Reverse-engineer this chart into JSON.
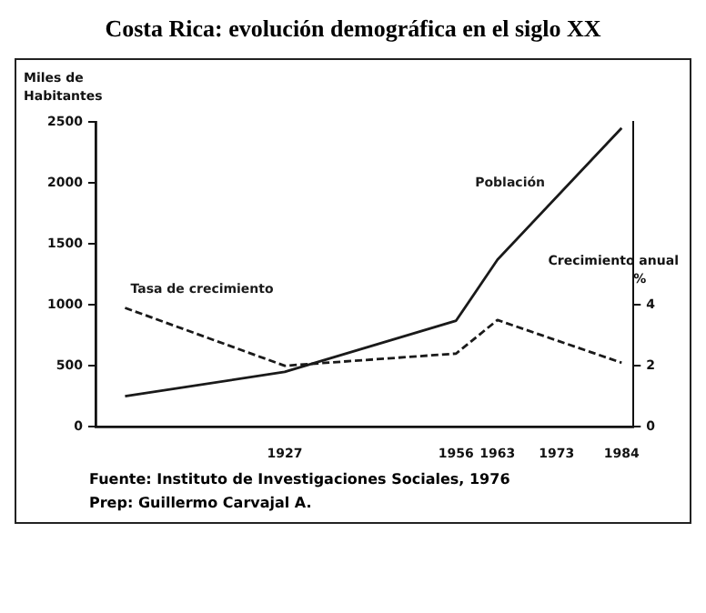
{
  "chart_data": {
    "type": "line",
    "title": "Costa Rica: evolución demográfica en el siglo XX",
    "ylabel": "Miles de Habitantes",
    "y2label": "Crecimiento anual %",
    "x": [
      1900,
      1927,
      1956,
      1963,
      1984
    ],
    "series": [
      {
        "name": "Población",
        "color": "#1a1a1a",
        "values": [
          250,
          450,
          870,
          1370,
          2450
        ],
        "line_style": "solid"
      },
      {
        "name": "Tasa de crecimiento",
        "color": "#1a1a1a",
        "values": [
          3.9,
          2.0,
          2.4,
          3.5,
          2.1
        ],
        "axis": "y2",
        "line_style": "dashed"
      }
    ],
    "xlim": [
      1895,
      1986
    ],
    "xticks": [
      1927,
      1956,
      1963,
      1973,
      1984
    ],
    "ylim": [
      0,
      2500
    ],
    "yticks": [
      0,
      500,
      1000,
      1500,
      2000,
      2500
    ],
    "y2lim": [
      0,
      10
    ],
    "y2ticks": [
      0,
      2,
      4
    ],
    "grid": false,
    "legend": false,
    "marker": "none",
    "annotations": [
      "Fuente: Instituto de Investigaciones Sociales, 1976",
      "Prep: Guillermo Carvajal A."
    ]
  }
}
